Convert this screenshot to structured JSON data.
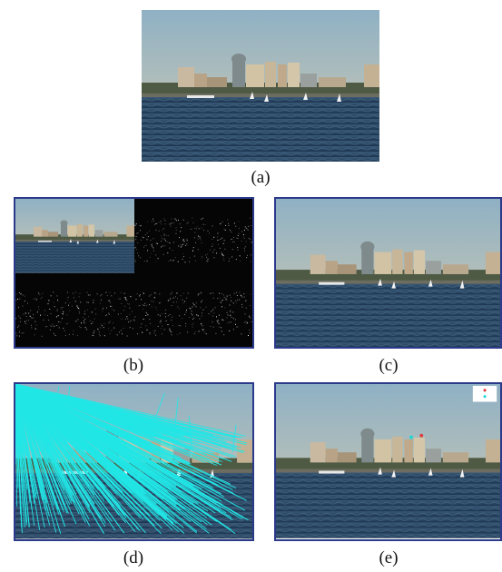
{
  "figure": {
    "panels": [
      {
        "id": "a",
        "label": "(a)",
        "content": "city-skyline-river-photo"
      },
      {
        "id": "b",
        "label": "(b)",
        "content": "photo-with-wavelet-subbands"
      },
      {
        "id": "c",
        "label": "(c)",
        "content": "city-skyline-river-photo"
      },
      {
        "id": "d",
        "label": "(d)",
        "content": "photo-with-motion-vectors"
      },
      {
        "id": "e",
        "label": "(e)",
        "content": "photo-with-legend-markers"
      }
    ],
    "colors": {
      "sky": "#a9b9b7",
      "water": "#27445f",
      "border": "#2b3a8a",
      "vectors": "#22e6e6",
      "legend_red": "#e23a3a",
      "legend_cyan": "#20d5d5"
    }
  }
}
